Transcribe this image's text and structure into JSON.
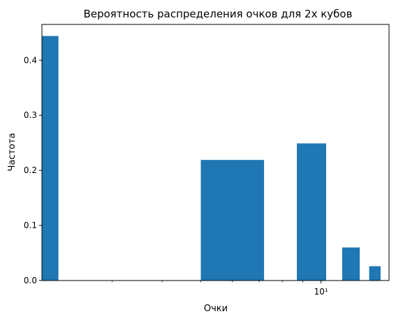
{
  "chart_data": {
    "type": "bar",
    "title": "Вероятность распределения очков для 2х кубов",
    "xlabel": "Очки",
    "ylabel": "Частота",
    "x_scale": "log",
    "xlim": [
      2.0,
      14.8
    ],
    "ylim": [
      0,
      0.465
    ],
    "y_ticks": [
      0.0,
      0.1,
      0.2,
      0.3,
      0.4
    ],
    "y_tick_labels": [
      "0.0",
      "0.1",
      "0.2",
      "0.3",
      "0.4"
    ],
    "x_major_ticks": [
      10
    ],
    "x_major_tick_labels": [
      "10¹"
    ],
    "x_minor_ticks": [
      3,
      4,
      5,
      6,
      7,
      8,
      9
    ],
    "color": "#1f77b4",
    "bars": [
      {
        "x_left": 1.9,
        "x_right": 2.2,
        "value": 0.444
      },
      {
        "x_left": 5.0,
        "x_right": 7.2,
        "value": 0.219
      },
      {
        "x_left": 8.7,
        "x_right": 10.3,
        "value": 0.249
      },
      {
        "x_left": 11.3,
        "x_right": 12.5,
        "value": 0.06
      },
      {
        "x_left": 13.2,
        "x_right": 14.1,
        "value": 0.026
      }
    ]
  }
}
